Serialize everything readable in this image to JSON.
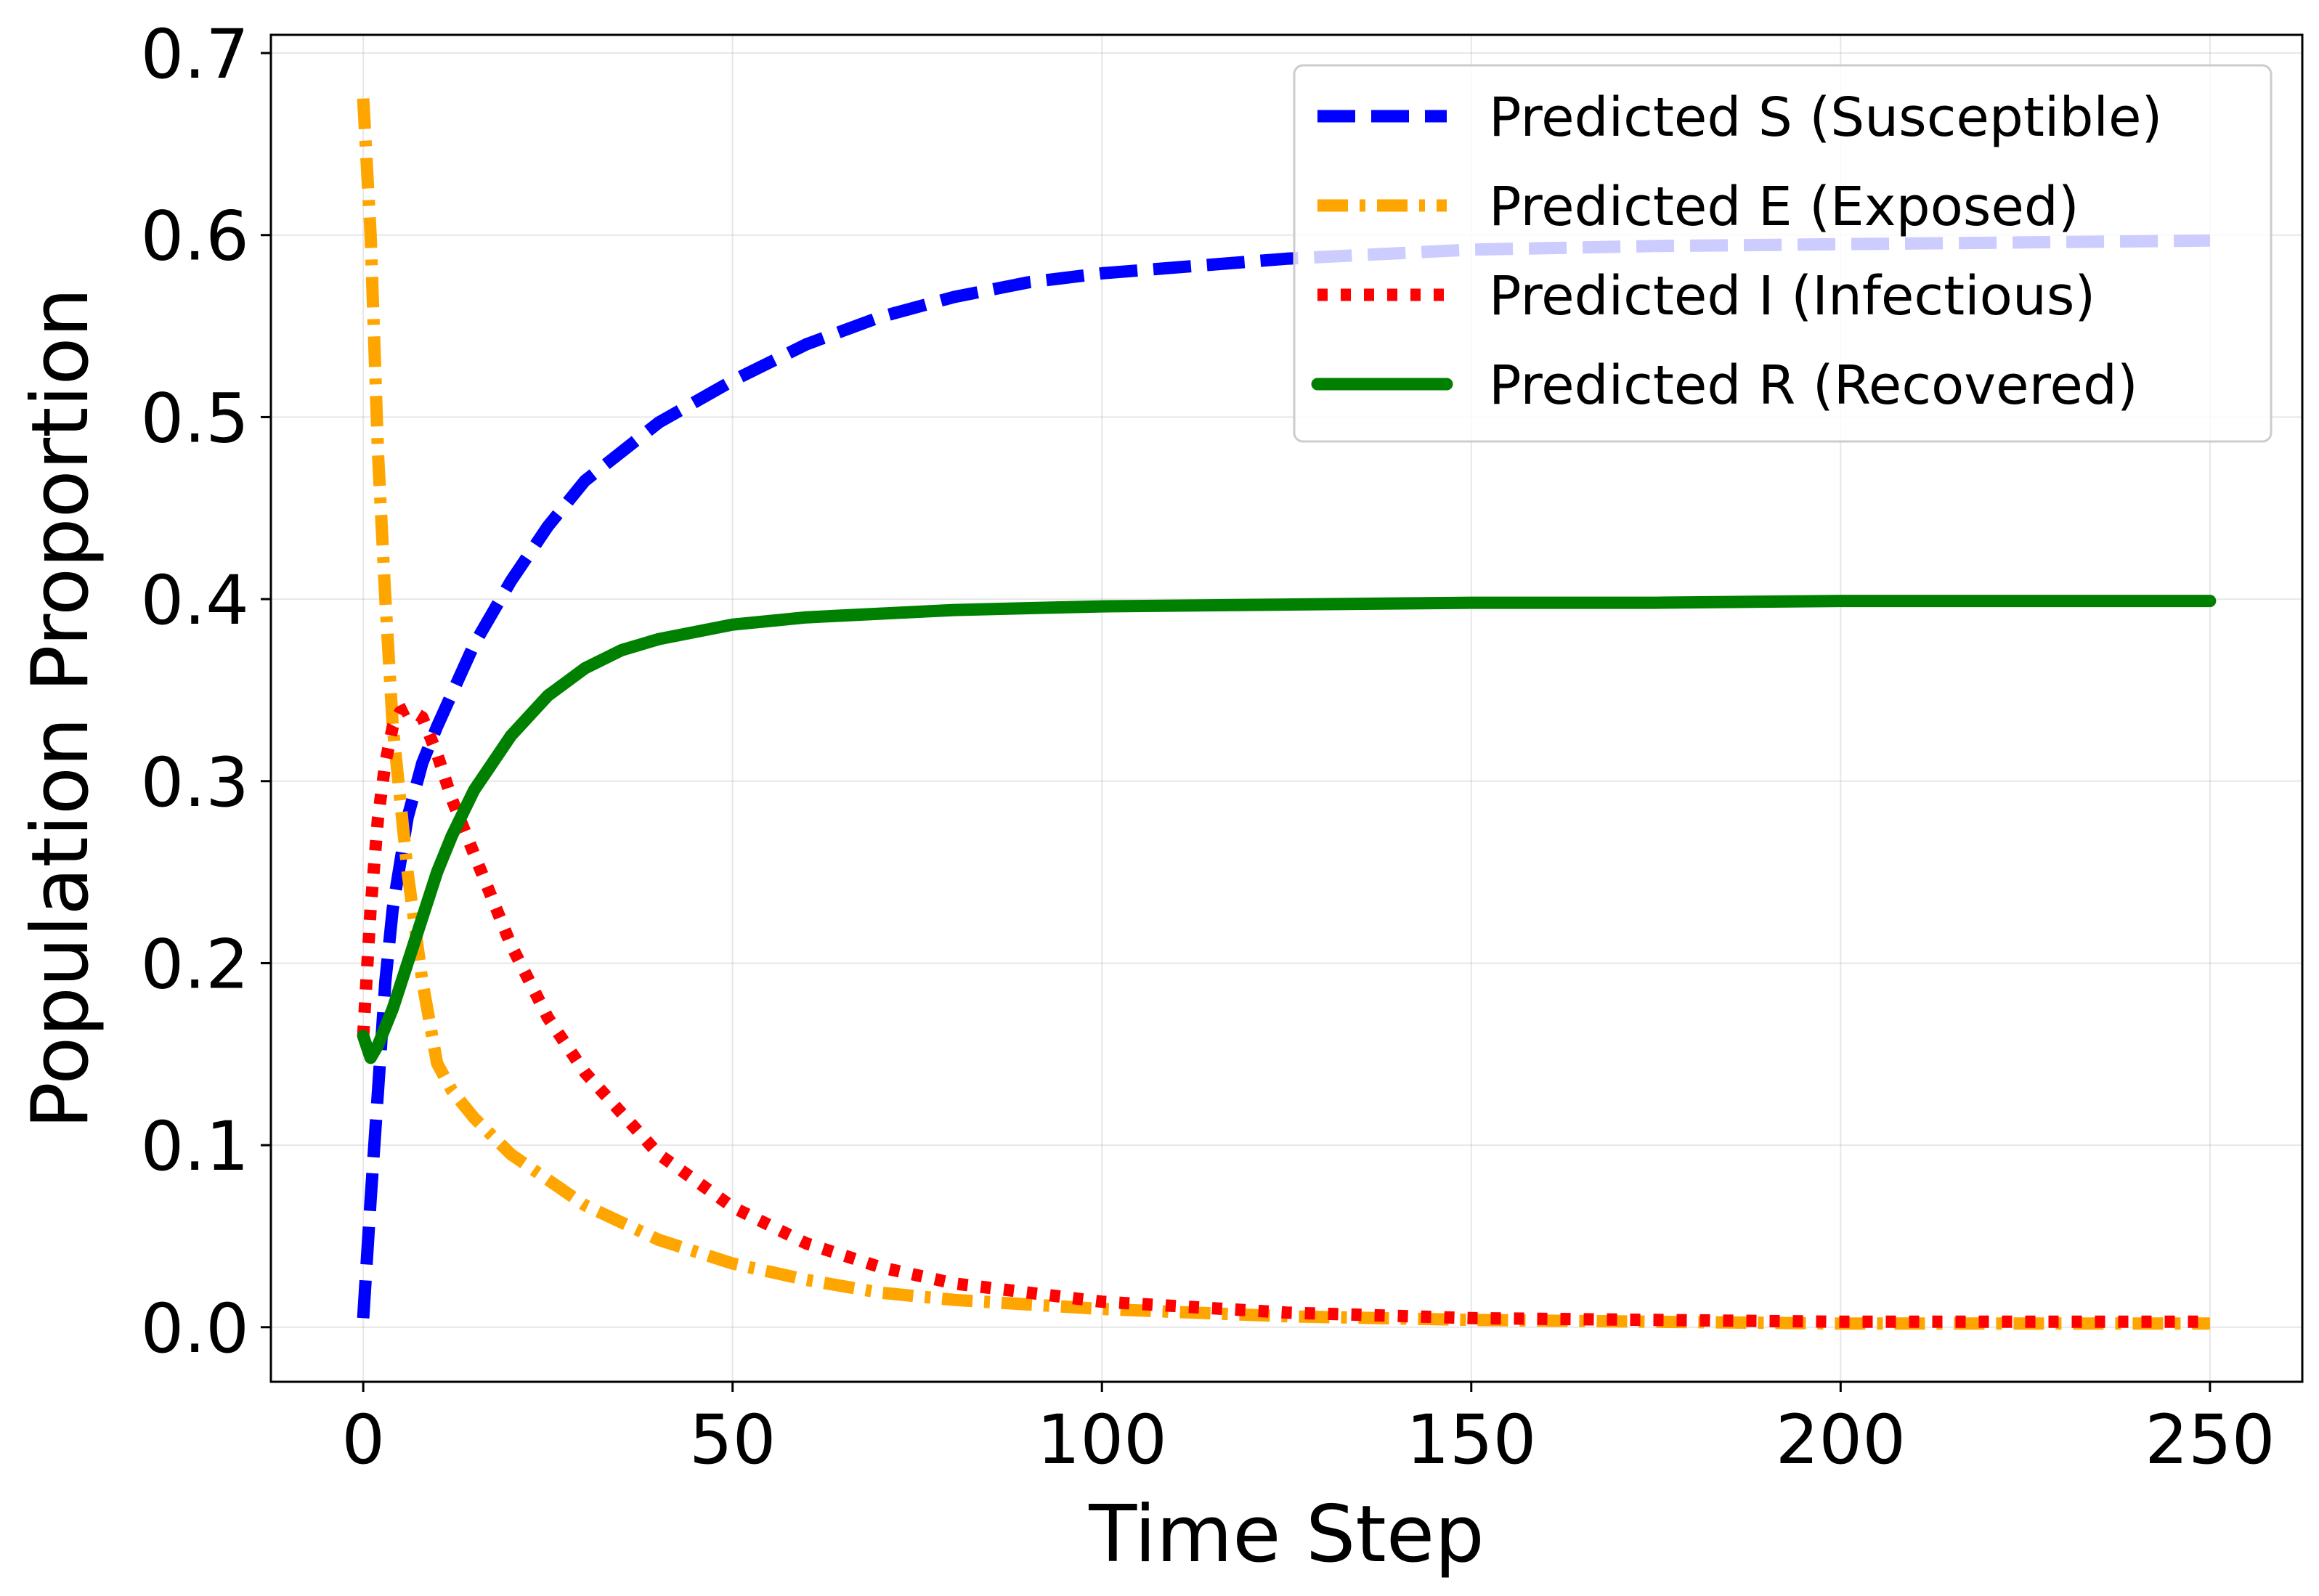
{
  "chart_data": {
    "type": "line",
    "xlabel": "Time Step",
    "ylabel": "Population Proportion",
    "xlim": [
      -12.5,
      262.5
    ],
    "ylim": [
      -0.03,
      0.71
    ],
    "xticks": [
      0,
      50,
      100,
      150,
      200,
      250
    ],
    "yticks": [
      0.0,
      0.1,
      0.2,
      0.3,
      0.4,
      0.5,
      0.6,
      0.7
    ],
    "xtick_labels": [
      "0",
      "50",
      "100",
      "150",
      "200",
      "250"
    ],
    "ytick_labels": [
      "0.0",
      "0.1",
      "0.2",
      "0.3",
      "0.4",
      "0.5",
      "0.6",
      "0.7"
    ],
    "grid": true,
    "legend_position": "top-right",
    "series": [
      {
        "name": "Predicted S (Susceptible)",
        "color": "#0000ff",
        "style": "dashed",
        "x": [
          0,
          1,
          2,
          3,
          4,
          6,
          8,
          10,
          15,
          20,
          25,
          30,
          40,
          50,
          60,
          70,
          80,
          90,
          100,
          125,
          150,
          175,
          200,
          225,
          250
        ],
        "y": [
          0.005,
          0.07,
          0.13,
          0.19,
          0.23,
          0.28,
          0.31,
          0.33,
          0.375,
          0.41,
          0.44,
          0.465,
          0.497,
          0.52,
          0.54,
          0.555,
          0.566,
          0.574,
          0.579,
          0.587,
          0.592,
          0.594,
          0.595,
          0.596,
          0.597
        ]
      },
      {
        "name": "Predicted E (Exposed)",
        "color": "#ffa500",
        "style": "dashdot",
        "x": [
          0,
          1,
          2,
          3,
          4,
          6,
          8,
          10,
          12,
          15,
          20,
          30,
          40,
          50,
          60,
          70,
          80,
          100,
          125,
          150,
          175,
          200,
          250
        ],
        "y": [
          0.675,
          0.6,
          0.48,
          0.4,
          0.33,
          0.25,
          0.19,
          0.145,
          0.13,
          0.115,
          0.095,
          0.067,
          0.048,
          0.035,
          0.026,
          0.019,
          0.015,
          0.01,
          0.006,
          0.004,
          0.003,
          0.002,
          0.002
        ]
      },
      {
        "name": "Predicted I (Infectious)",
        "color": "#ff0000",
        "style": "dotted",
        "x": [
          0,
          1,
          2,
          3,
          4,
          5,
          6,
          8,
          10,
          12,
          15,
          20,
          25,
          30,
          40,
          50,
          60,
          70,
          80,
          100,
          125,
          150,
          175,
          200,
          250
        ],
        "y": [
          0.16,
          0.23,
          0.28,
          0.31,
          0.33,
          0.338,
          0.34,
          0.335,
          0.315,
          0.29,
          0.26,
          0.21,
          0.17,
          0.14,
          0.095,
          0.066,
          0.046,
          0.033,
          0.024,
          0.014,
          0.008,
          0.005,
          0.004,
          0.003,
          0.003
        ]
      },
      {
        "name": "Predicted R (Recovered)",
        "color": "#008000",
        "style": "solid",
        "x": [
          0,
          1,
          2,
          4,
          6,
          8,
          10,
          12,
          15,
          20,
          25,
          30,
          35,
          40,
          50,
          60,
          70,
          80,
          100,
          125,
          150,
          175,
          200,
          250
        ],
        "y": [
          0.16,
          0.148,
          0.155,
          0.175,
          0.2,
          0.225,
          0.25,
          0.27,
          0.295,
          0.325,
          0.347,
          0.362,
          0.372,
          0.378,
          0.386,
          0.39,
          0.392,
          0.394,
          0.396,
          0.397,
          0.398,
          0.398,
          0.399,
          0.399
        ]
      }
    ]
  }
}
